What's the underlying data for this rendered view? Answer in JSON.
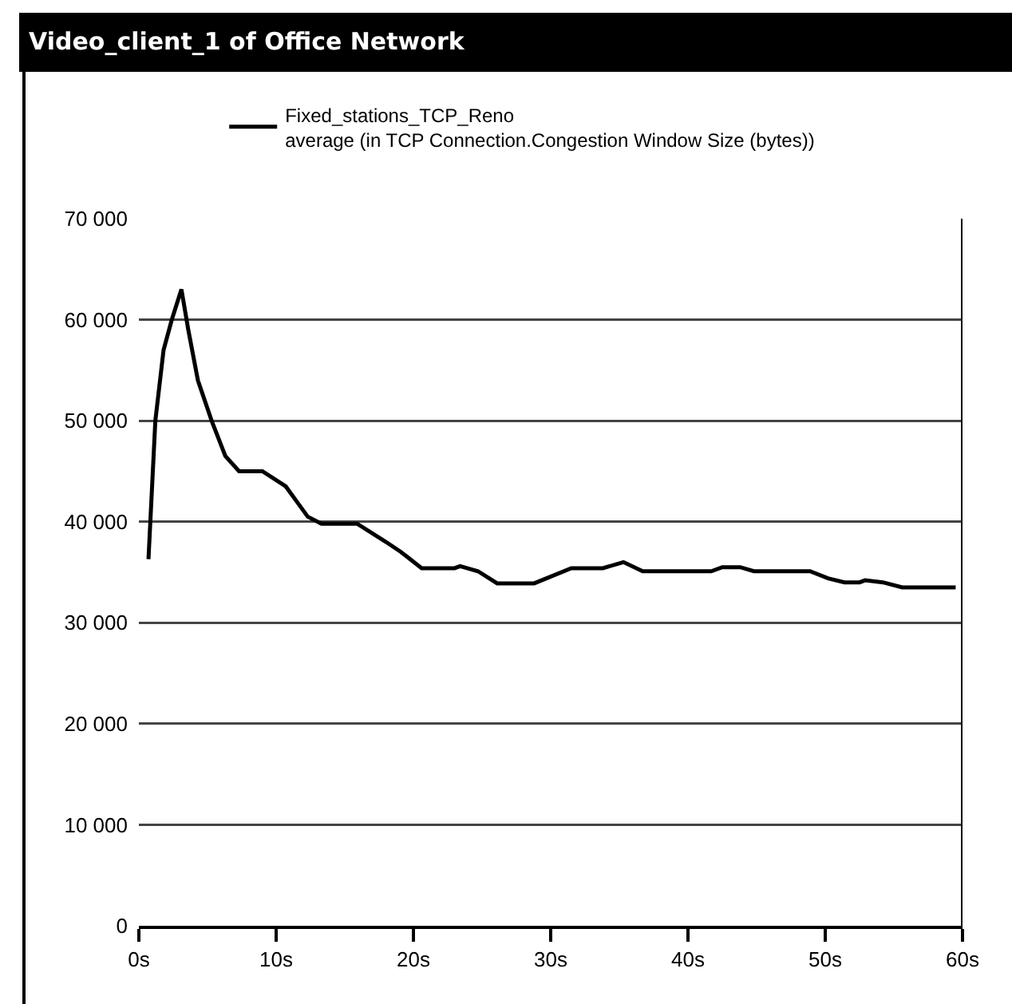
{
  "chart_data": {
    "type": "line",
    "title": "Video_client_1 of Office Network",
    "x": [
      0.7,
      1.2,
      1.8,
      2.4,
      3.1,
      3.6,
      4.3,
      5.3,
      6.3,
      7.3,
      9.0,
      10.7,
      11.5,
      12.3,
      13.3,
      15.9,
      18.0,
      19.1,
      20.6,
      23.0,
      23.4,
      24.7,
      26.1,
      28.8,
      31.5,
      33.8,
      35.3,
      36.7,
      41.7,
      42.5,
      43.8,
      44.8,
      48.9,
      50.2,
      51.4,
      52.5,
      52.9,
      54.2,
      55.6,
      59.5
    ],
    "series": [
      {
        "name": "Fixed_stations_TCP_Reno\naverage (in TCP Connection.Congestion Window Size (bytes))",
        "color": "#000000",
        "values": [
          36300,
          50000,
          57000,
          60000,
          63000,
          59000,
          54000,
          50000,
          46500,
          45000,
          45000,
          43500,
          42000,
          40500,
          39800,
          39800,
          38000,
          37000,
          35400,
          35400,
          35600,
          35100,
          33900,
          33900,
          35400,
          35400,
          36000,
          35100,
          35100,
          35500,
          35500,
          35100,
          35100,
          34400,
          34000,
          34000,
          34200,
          34000,
          33500,
          33500
        ]
      }
    ],
    "xlim": [
      0,
      60
    ],
    "xticks": [
      {
        "value": 0,
        "label": "0s"
      },
      {
        "value": 10,
        "label": "10s"
      },
      {
        "value": 20,
        "label": "20s"
      },
      {
        "value": 30,
        "label": "30s"
      },
      {
        "value": 40,
        "label": "40s"
      },
      {
        "value": 50,
        "label": "50s"
      },
      {
        "value": 60,
        "label": "60s"
      }
    ],
    "ylim": [
      0,
      70000
    ],
    "yticks": [
      {
        "value": 0,
        "label": "0"
      },
      {
        "value": 10000,
        "label": "10 000"
      },
      {
        "value": 20000,
        "label": "20 000"
      },
      {
        "value": 30000,
        "label": "30 000"
      },
      {
        "value": 40000,
        "label": "40 000"
      },
      {
        "value": 50000,
        "label": "50 000"
      },
      {
        "value": 60000,
        "label": "60 000"
      },
      {
        "value": 70000,
        "label": "70 000"
      }
    ],
    "grid": "y",
    "legend": "top left",
    "line_style": "solid",
    "marker": "none"
  }
}
